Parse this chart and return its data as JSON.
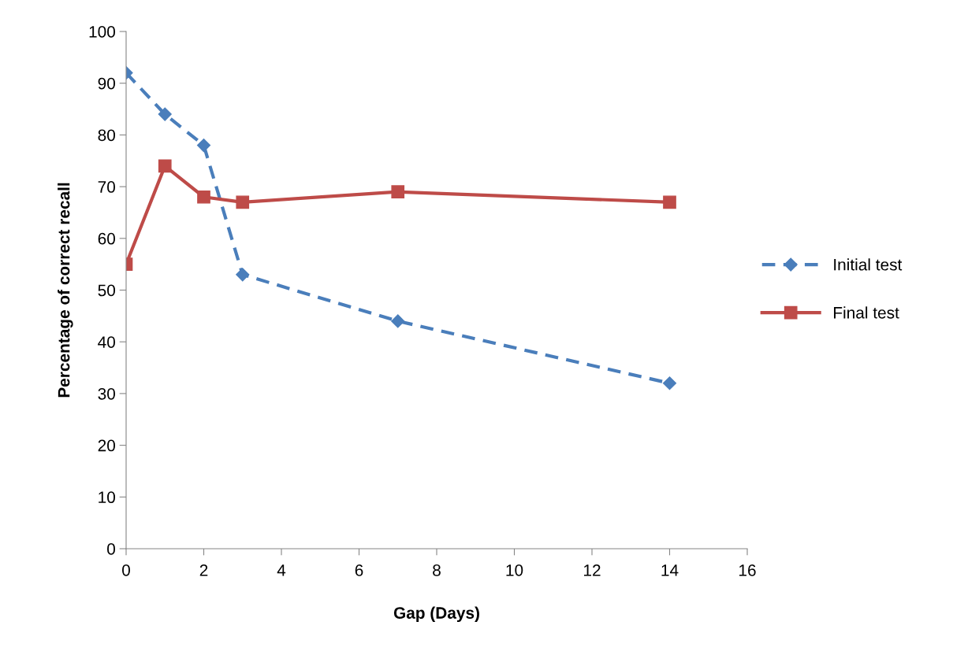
{
  "chart_data": {
    "type": "line",
    "xlabel": "Gap (Days)",
    "ylabel": "Percentage of correct recall",
    "x": [
      0,
      1,
      2,
      3,
      7,
      14
    ],
    "series": [
      {
        "name": "Initial test",
        "color": "#4a7ebb",
        "values": [
          92,
          84,
          78,
          53,
          44,
          32
        ],
        "marker": "diamond",
        "line_style": "dashed"
      },
      {
        "name": "Final test",
        "color": "#be4b48",
        "values": [
          55,
          74,
          68,
          67,
          69,
          67
        ],
        "marker": "square",
        "line_style": "solid"
      }
    ],
    "xlim": [
      0,
      16
    ],
    "xticks": [
      0,
      2,
      4,
      6,
      8,
      10,
      12,
      14,
      16
    ],
    "ylim": [
      0,
      100
    ],
    "yticks": [
      0,
      10,
      20,
      30,
      40,
      50,
      60,
      70,
      80,
      90,
      100
    ],
    "grid": false,
    "legend": "right"
  }
}
